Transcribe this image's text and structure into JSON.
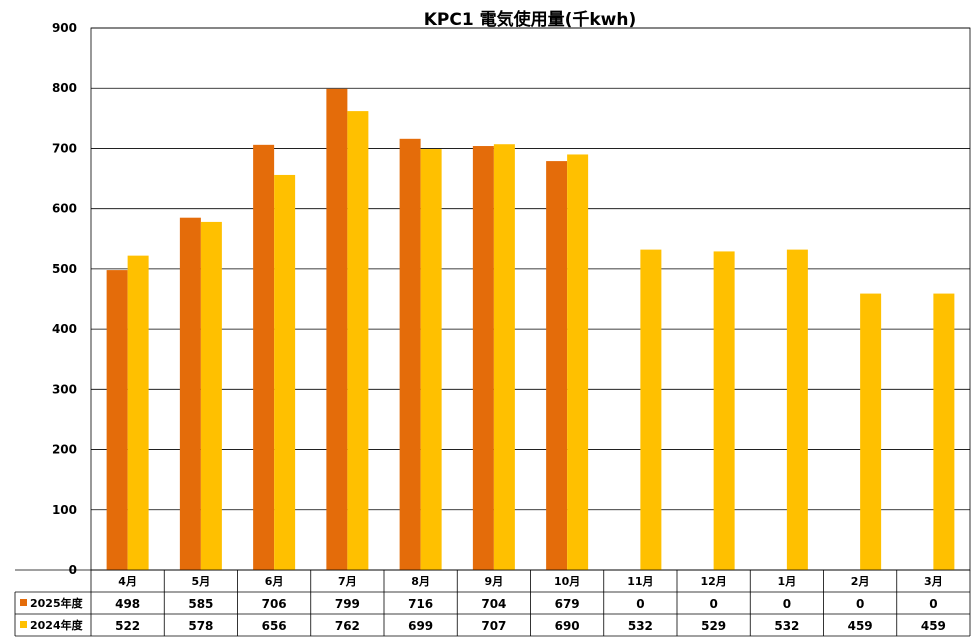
{
  "chart_data": {
    "type": "bar",
    "title": "KPC1 電気使用量(千kwh)",
    "categories": [
      "4月",
      "5月",
      "6月",
      "7月",
      "8月",
      "9月",
      "10月",
      "11月",
      "12月",
      "1月",
      "2月",
      "3月"
    ],
    "series": [
      {
        "name": "2025年度",
        "color": "#E46C0A",
        "values": [
          498,
          585,
          706,
          799,
          716,
          704,
          679,
          0,
          0,
          0,
          0,
          0
        ],
        "table_values": [
          "498",
          "585",
          "706",
          "799",
          "716",
          "704",
          "679",
          "0",
          "0",
          "0",
          "0",
          "0"
        ]
      },
      {
        "name": "2024年度",
        "color": "#FFC000",
        "values": [
          522,
          578,
          656,
          762,
          699,
          707,
          690,
          532,
          529,
          532,
          459,
          459
        ],
        "table_values": [
          "522",
          "578",
          "656",
          "762",
          "699",
          "707",
          "690",
          "532",
          "529",
          "532",
          "459",
          "459"
        ]
      }
    ],
    "ylim": [
      0,
      900
    ],
    "yticks": [
      "0",
      "100",
      "200",
      "300",
      "400",
      "500",
      "600",
      "700",
      "800",
      "900"
    ],
    "grid": true,
    "legend_placement": "data-table-left"
  }
}
